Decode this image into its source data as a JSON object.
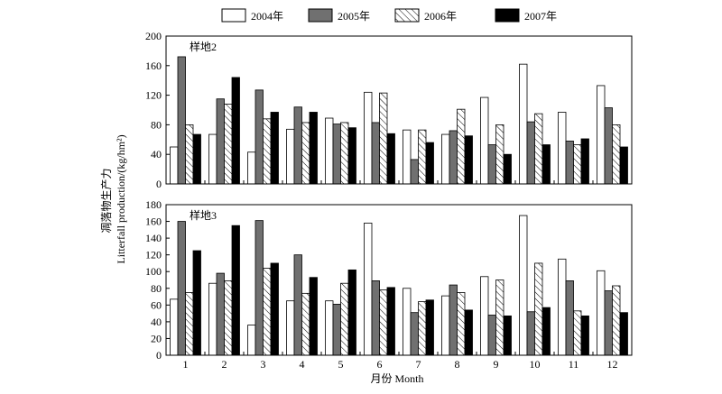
{
  "chart_data": {
    "type": "bar",
    "categories": [
      "1",
      "2",
      "3",
      "4",
      "5",
      "6",
      "7",
      "8",
      "9",
      "10",
      "11",
      "12"
    ],
    "legend_position": "top",
    "grid": false,
    "xlabel": "月份 Month",
    "ylabel_cn": "凋落物生产力",
    "ylabel_en": "Litterfall production/(kg/hm²)",
    "series": [
      {
        "name": "2004年",
        "color": "#ffffff",
        "pattern": "none"
      },
      {
        "name": "2005年",
        "color": "#707070",
        "pattern": "none"
      },
      {
        "name": "2006年",
        "color": "#ffffff",
        "pattern": "hatch"
      },
      {
        "name": "2007年",
        "color": "#000000",
        "pattern": "none"
      }
    ],
    "panels": [
      {
        "title": "样地2",
        "ylim": [
          0,
          200
        ],
        "yticks": [
          0,
          40,
          80,
          120,
          160,
          200
        ],
        "values": [
          [
            50,
            67,
            43,
            74,
            89,
            124,
            73,
            67,
            117,
            162,
            97,
            133
          ],
          [
            172,
            115,
            127,
            104,
            81,
            83,
            33,
            72,
            53,
            84,
            58,
            103
          ],
          [
            80,
            108,
            88,
            83,
            83,
            123,
            73,
            101,
            80,
            95,
            53,
            80
          ],
          [
            67,
            144,
            97,
            97,
            76,
            68,
            56,
            65,
            40,
            53,
            61,
            50
          ]
        ]
      },
      {
        "title": "样地3",
        "ylim": [
          0,
          180
        ],
        "yticks": [
          0,
          20,
          40,
          60,
          80,
          100,
          120,
          140,
          160,
          180
        ],
        "values": [
          [
            67,
            86,
            36,
            65,
            65,
            158,
            80,
            71,
            94,
            167,
            115,
            101
          ],
          [
            160,
            98,
            161,
            120,
            61,
            89,
            51,
            84,
            48,
            52,
            89,
            77
          ],
          [
            75,
            89,
            104,
            74,
            86,
            78,
            64,
            75,
            90,
            110,
            53,
            83
          ],
          [
            125,
            155,
            110,
            93,
            102,
            81,
            66,
            54,
            47,
            57,
            47,
            51
          ]
        ]
      }
    ]
  }
}
